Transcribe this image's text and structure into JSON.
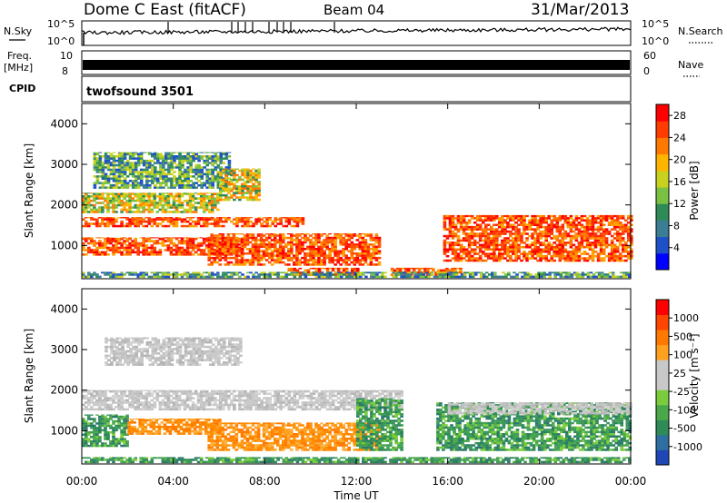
{
  "header": {
    "station": "Dome C East (fitACF)",
    "beam": "Beam 04",
    "date": "31/Mar/2013"
  },
  "strips": {
    "nsky_label": "N.Sky",
    "nsky_ticks": [
      "10^5",
      "10^0"
    ],
    "nsearch_label": "N.Search",
    "nsearch_ticks": [
      "10^5",
      "10^0"
    ],
    "freq_label": "Freq.",
    "freq_unit": "[MHz]",
    "freq_ticks": [
      "10",
      "8"
    ],
    "nave_label": "Nave",
    "nave_ticks": [
      "60",
      "0"
    ],
    "cpid_label": "CPID",
    "cpid_value": "twofsound 3501"
  },
  "chart_data": [
    {
      "type": "heatmap",
      "name": "power-panel",
      "x": [
        "00:00",
        "04:00",
        "08:00",
        "12:00",
        "16:00",
        "20:00",
        "00:00"
      ],
      "xlim_hours": [
        0,
        24
      ],
      "ylabel": "Slant Range [km]",
      "yticks": [
        1000,
        2000,
        3000,
        4000
      ],
      "ylim": [
        180,
        4500
      ],
      "colorbar": {
        "label": "Power [dB]",
        "ticks": [
          "4",
          "8",
          "12",
          "16",
          "20",
          "24",
          "28"
        ],
        "colors": [
          "#0000ff",
          "#1e50c8",
          "#3c7d96",
          "#2e8b57",
          "#7ac143",
          "#c8d21e",
          "#ffb400",
          "#ff7800",
          "#ff3c00",
          "#ff0000"
        ],
        "range": [
          0,
          30
        ]
      },
      "regions": [
        {
          "t0": 0.0,
          "t1": 9.6,
          "r0": 1450,
          "r1": 1700,
          "level": "high"
        },
        {
          "t0": 0.0,
          "t1": 7.0,
          "r0": 750,
          "r1": 1200,
          "level": "high"
        },
        {
          "t0": 5.5,
          "t1": 13.0,
          "r0": 500,
          "r1": 1300,
          "level": "high"
        },
        {
          "t0": 9.0,
          "t1": 12.0,
          "r0": 250,
          "r1": 450,
          "level": "high"
        },
        {
          "t0": 13.5,
          "t1": 16.5,
          "r0": 250,
          "r1": 450,
          "level": "high"
        },
        {
          "t0": 15.8,
          "t1": 24.0,
          "r0": 600,
          "r1": 1750,
          "level": "high"
        },
        {
          "t0": 0.5,
          "t1": 6.5,
          "r0": 2400,
          "r1": 3300,
          "level": "low"
        },
        {
          "t0": 0.0,
          "t1": 6.0,
          "r0": 1800,
          "r1": 2300,
          "level": "mid"
        },
        {
          "t0": 6.0,
          "t1": 7.8,
          "r0": 2100,
          "r1": 2900,
          "level": "mid"
        },
        {
          "t0": 0.0,
          "t1": 24.0,
          "r0": 200,
          "r1": 350,
          "level": "low"
        }
      ]
    },
    {
      "type": "heatmap",
      "name": "velocity-panel",
      "x": [
        "00:00",
        "04:00",
        "08:00",
        "12:00",
        "16:00",
        "20:00",
        "00:00"
      ],
      "xlim_hours": [
        0,
        24
      ],
      "xlabel": "Time UT",
      "ylabel": "Slant Range [km]",
      "yticks": [
        1000,
        2000,
        3000,
        4000
      ],
      "ylim": [
        180,
        4500
      ],
      "colorbar": {
        "label": "Velocity [m s⁻¹]",
        "ticks": [
          "1000",
          "500",
          "100",
          "25",
          "-25",
          "-100",
          "-500",
          "-1000"
        ],
        "colors": [
          "#1e46b4",
          "#2e6ea0",
          "#2e8b57",
          "#4aa84a",
          "#7acc3c",
          "#c8c8c8",
          "#c8c8c8",
          "#ffa01e",
          "#ff7800",
          "#ff4600",
          "#ff0000"
        ],
        "range": [
          -1000,
          1000
        ]
      },
      "regions": [
        {
          "t0": 0.0,
          "t1": 14.0,
          "r0": 1500,
          "r1": 2000,
          "level": "grey"
        },
        {
          "t0": 0.0,
          "t1": 2.0,
          "r0": 600,
          "r1": 1400,
          "level": "green"
        },
        {
          "t0": 2.0,
          "t1": 6.0,
          "r0": 900,
          "r1": 1300,
          "level": "orange"
        },
        {
          "t0": 5.5,
          "t1": 13.0,
          "r0": 500,
          "r1": 1200,
          "level": "orange"
        },
        {
          "t0": 12.0,
          "t1": 14.0,
          "r0": 500,
          "r1": 1800,
          "level": "green"
        },
        {
          "t0": 15.5,
          "t1": 24.0,
          "r0": 500,
          "r1": 1700,
          "level": "green"
        },
        {
          "t0": 16.0,
          "t1": 24.0,
          "r0": 1400,
          "r1": 1700,
          "level": "grey"
        },
        {
          "t0": 1.0,
          "t1": 7.0,
          "r0": 2600,
          "r1": 3300,
          "level": "grey"
        },
        {
          "t0": 0.0,
          "t1": 24.0,
          "r0": 200,
          "r1": 350,
          "level": "green"
        }
      ]
    }
  ]
}
